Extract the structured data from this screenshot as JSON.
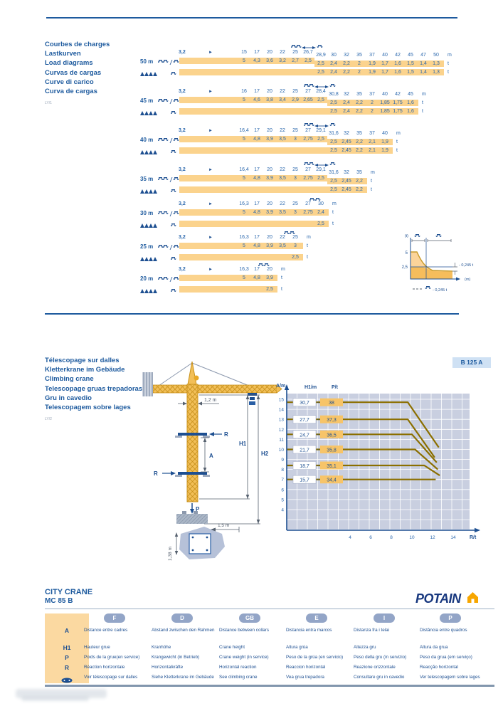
{
  "load_section": {
    "labels": [
      "Courbes de charges",
      "Lastkurven",
      "Load diagrams",
      "Curvas de cargas",
      "Curve di carico",
      "Curva de cargas"
    ],
    "ref": "LY/1",
    "start": "3,2",
    "arrow": "►",
    "unit_m": "m",
    "unit_t": "t",
    "diagrams": [
      {
        "height": "50 m",
        "lowered": true,
        "v2start": 6,
        "cols": [
          "15",
          "17",
          "20",
          "22",
          "25",
          "26,7",
          "28,9",
          "30",
          "32",
          "35",
          "37",
          "40",
          "42",
          "45",
          "47",
          "50"
        ],
        "vals1": [
          "5",
          "4,3",
          "3,6",
          "3,2",
          "2,7",
          "2,5",
          "2,5",
          "2,4",
          "2,2",
          "2",
          "1,9",
          "1,7",
          "1,6",
          "1,5",
          "1,4",
          "1,3"
        ],
        "vals2": [
          "2,5",
          "2,4",
          "2,2",
          "2",
          "1,9",
          "1,7",
          "1,6",
          "1,5",
          "1,4",
          "1,3"
        ]
      },
      {
        "height": "45 m",
        "lowered": true,
        "v2start": 7,
        "cols": [
          "16",
          "17",
          "20",
          "22",
          "25",
          "27",
          "28,4",
          "30,8",
          "32",
          "35",
          "37",
          "40",
          "42",
          "45"
        ],
        "vals1": [
          "5",
          "4,6",
          "3,8",
          "3,4",
          "2,9",
          "2,65",
          "2,5",
          "2,5",
          "2,4",
          "2,2",
          "2",
          "1,85",
          "1,75",
          "1,6"
        ],
        "vals2": [
          "2,5",
          "2,4",
          "2,2",
          "2",
          "1,85",
          "1,75",
          "1,6"
        ]
      },
      {
        "height": "40 m",
        "lowered": true,
        "v2start": 7,
        "cols": [
          "16,4",
          "17",
          "20",
          "22",
          "25",
          "27",
          "29,1",
          "31,6",
          "32",
          "35",
          "37",
          "40"
        ],
        "vals1": [
          "5",
          "4,8",
          "3,9",
          "3,5",
          "3",
          "2,75",
          "2,5",
          "2,5",
          "2,45",
          "2,2",
          "2,1",
          "1,9"
        ],
        "vals2": [
          "2,5",
          "2,45",
          "2,2",
          "2,1",
          "1,9"
        ]
      },
      {
        "height": "35 m",
        "lowered": true,
        "v2start": 7,
        "cols": [
          "16,4",
          "17",
          "20",
          "22",
          "25",
          "27",
          "29,1",
          "31,6",
          "32",
          "35"
        ],
        "vals1": [
          "5",
          "4,8",
          "3,9",
          "3,5",
          "3",
          "2,75",
          "2,5",
          "2,5",
          "2,45",
          "2,2"
        ],
        "vals2": [
          "2,5",
          "2,45",
          "2,2"
        ]
      },
      {
        "height": "30 m",
        "lowered": false,
        "v2start": 6,
        "cols": [
          "16,3",
          "17",
          "20",
          "22",
          "25",
          "27",
          "30"
        ],
        "vals1": [
          "5",
          "4,8",
          "3,9",
          "3,5",
          "3",
          "2,75",
          "2,4"
        ],
        "vals2": [
          "2,5"
        ]
      },
      {
        "height": "25 m",
        "lowered": false,
        "v2start": 4,
        "cols": [
          "16,3",
          "17",
          "20",
          "22",
          "25"
        ],
        "vals1": [
          "5",
          "4,8",
          "3,9",
          "3,5",
          "3"
        ],
        "vals2": [
          "2,5"
        ]
      },
      {
        "height": "20 m",
        "lowered": false,
        "v2start": 2,
        "cols": [
          "16,3",
          "17",
          "20"
        ],
        "vals1": [
          "5",
          "4,8",
          "3,9"
        ],
        "vals2": [
          "2,5"
        ]
      }
    ],
    "inset": {
      "y_unit": "(t)",
      "x_unit": "(m)",
      "y_top": "5",
      "y_mid": "2,5",
      "annotation": "- 0,245 t",
      "legend": "- 0,245 t"
    }
  },
  "climb": {
    "labels": [
      "Télescopage sur dalles",
      "Kletterkrane im Gebäude",
      "Climbing crane",
      "Telescopage gruas trepadoras",
      "Gru in cavedio",
      "Telescopagem sobre lages"
    ],
    "ref": "LY/2",
    "badge": "B 125 A",
    "crane_labels": {
      "mast_width": "1,2 m",
      "h1": "H1",
      "h2": "H2",
      "a": "A",
      "p": "P",
      "r": "R",
      "base_w": "1,5 m",
      "base_h": "1,38 m"
    },
    "chart": {
      "type": "line",
      "y_axis": "A/m",
      "x_axis": "R/t",
      "col_h1": "H1/m",
      "col_p": "P/t",
      "y_ticks": [
        "15",
        "14",
        "13",
        "12",
        "11",
        "10",
        "9",
        "8",
        "7",
        "6",
        "5",
        "4"
      ],
      "x_ticks": [
        "4",
        "6",
        "8",
        "10",
        "12",
        "14"
      ],
      "dash": "-",
      "pairs": [
        {
          "a": 14.7,
          "h1": "30,7",
          "p": "38"
        },
        {
          "a": 13.0,
          "h1": "27,7",
          "p": "37,3"
        },
        {
          "a": 11.5,
          "h1": "24,7",
          "p": "36,5"
        },
        {
          "a": 10.0,
          "h1": "21,7",
          "p": "35,8"
        },
        {
          "a": 8.4,
          "h1": "18,7",
          "p": "35,1"
        },
        {
          "a": 7.0,
          "h1": "15,7",
          "p": "34,4"
        }
      ],
      "series": [
        [
          [
            -2.1,
            14.7
          ],
          [
            9.6,
            14.7
          ],
          [
            12.6,
            10.2
          ]
        ],
        [
          [
            -2.1,
            13.0
          ],
          [
            9.6,
            13.0
          ],
          [
            12.2,
            9.2
          ]
        ],
        [
          [
            -2.1,
            11.5
          ],
          [
            10.0,
            11.5
          ],
          [
            12.4,
            8.7
          ]
        ],
        [
          [
            -2.1,
            10.0
          ],
          [
            10.3,
            10.0
          ],
          [
            12.5,
            8.0
          ]
        ],
        [
          [
            -2.1,
            8.4
          ],
          [
            11.2,
            8.4
          ],
          [
            12.7,
            7.4
          ]
        ],
        [
          [
            -2.1,
            7.0
          ],
          [
            12.3,
            7.0
          ]
        ]
      ]
    }
  },
  "footer": {
    "title1": "CITY CRANE",
    "title2": "MC 85 B",
    "brand": "POTAIN",
    "legend_table": {
      "symbols": [
        "A",
        "H1",
        "P",
        "R"
      ],
      "columns": [
        {
          "code": "F",
          "items": [
            "Distance entre cadres",
            "Hauteur grue",
            "Poids de la grue(en service)",
            "Réaction horizontale",
            "Voir télescopage sur dalles"
          ]
        },
        {
          "code": "D",
          "items": [
            "Abstand zwischen den Rahmen",
            "Kranhöhe",
            "Krangewicht (in Betrieb)",
            "Horizontalkräfte",
            "Siehe Kletterkrane im Gebäude"
          ]
        },
        {
          "code": "GB",
          "items": [
            "Distance between collars",
            "Crane height",
            "Crane weight (in service)",
            "Horizontal reaction",
            "See climbing crane"
          ]
        },
        {
          "code": "E",
          "items": [
            "Distancia entra marcos",
            "Altura grúa",
            "Peso de la grúa (en servicio)",
            "Reaccion horizontal",
            "Vea grua trepadora"
          ]
        },
        {
          "code": "I",
          "items": [
            "Distanza fra i telai",
            "Altezza gru",
            "Peso della gru (in servizio)",
            "Reazione orizzontale",
            "Consultare gru in cavedio"
          ]
        },
        {
          "code": "P",
          "items": [
            "Distância entre quadros",
            "Altura da grua",
            "Peso da grua (em serviço)",
            "Reacção horizontal",
            "Ver telescopagem sobre lages"
          ]
        }
      ]
    }
  }
}
